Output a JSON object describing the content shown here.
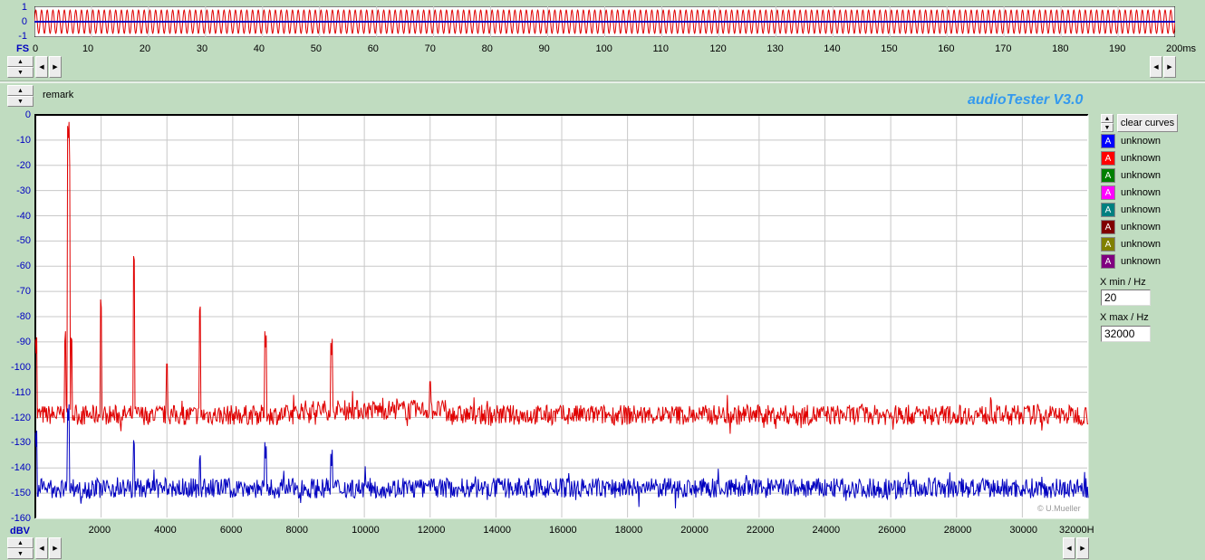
{
  "waveform": {
    "y_ticks": [
      "1",
      "0",
      "-1"
    ],
    "x_ticks": [
      "0",
      "10",
      "20",
      "30",
      "40",
      "50",
      "60",
      "70",
      "80",
      "90",
      "100",
      "110",
      "120",
      "130",
      "140",
      "150",
      "160",
      "170",
      "180",
      "190",
      "200ms"
    ],
    "unit_label": "FS",
    "xlim": [
      0,
      200
    ],
    "ylim": [
      -1,
      1
    ],
    "series": [
      {
        "color": "#e00000",
        "frequency_hz": 1000,
        "amplitude": 0.8
      },
      {
        "color": "#0000c0",
        "amplitude": 0
      }
    ]
  },
  "remark": "remark",
  "app_title": "audioTester  V3.0",
  "copyright": "© U.Mueller",
  "chart_data": {
    "type": "line",
    "xlabel": "",
    "ylabel": "dBV",
    "xlim": [
      0,
      32000
    ],
    "ylim": [
      -160,
      0
    ],
    "grid": true,
    "x_ticks": [
      "2000",
      "4000",
      "6000",
      "8000",
      "10000",
      "12000",
      "14000",
      "16000",
      "18000",
      "20000",
      "22000",
      "24000",
      "26000",
      "28000",
      "30000",
      "32000H"
    ],
    "y_ticks": [
      "0",
      "-10",
      "-20",
      "-30",
      "-40",
      "-50",
      "-60",
      "-70",
      "-80",
      "-90",
      "-100",
      "-110",
      "-120",
      "-130",
      "-140",
      "-150",
      "-160"
    ],
    "series": [
      {
        "color": "#e00000",
        "noise_floor_db": -119,
        "peaks": [
          [
            20,
            -95
          ],
          [
            900,
            -91
          ],
          [
            1000,
            -10
          ],
          [
            1030,
            -25
          ],
          [
            1100,
            -92
          ],
          [
            2000,
            -78
          ],
          [
            3000,
            -60
          ],
          [
            4000,
            -102
          ],
          [
            5000,
            -80
          ],
          [
            7000,
            -93
          ],
          [
            9000,
            -96
          ],
          [
            12000,
            -109
          ]
        ]
      },
      {
        "color": "#0000c0",
        "noise_floor_db": -148,
        "peaks": [
          [
            20,
            -132
          ],
          [
            1000,
            -122
          ],
          [
            3000,
            -133
          ],
          [
            5000,
            -139
          ],
          [
            7000,
            -137
          ],
          [
            9000,
            -140
          ]
        ]
      }
    ]
  },
  "legend": {
    "clear_label": "clear curves",
    "items": [
      {
        "name": "unknown",
        "color": "#0000ff"
      },
      {
        "name": "unknown",
        "color": "#ff0000"
      },
      {
        "name": "unknown",
        "color": "#008000"
      },
      {
        "name": "unknown",
        "color": "#ff00ff"
      },
      {
        "name": "unknown",
        "color": "#008080"
      },
      {
        "name": "unknown",
        "color": "#800000"
      },
      {
        "name": "unknown",
        "color": "#808000"
      },
      {
        "name": "unknown",
        "color": "#800080"
      }
    ],
    "swatch_letter": "A"
  },
  "xmin": {
    "label": "X min / Hz",
    "value": "20"
  },
  "xmax": {
    "label": "X max / Hz",
    "value": "32000"
  }
}
